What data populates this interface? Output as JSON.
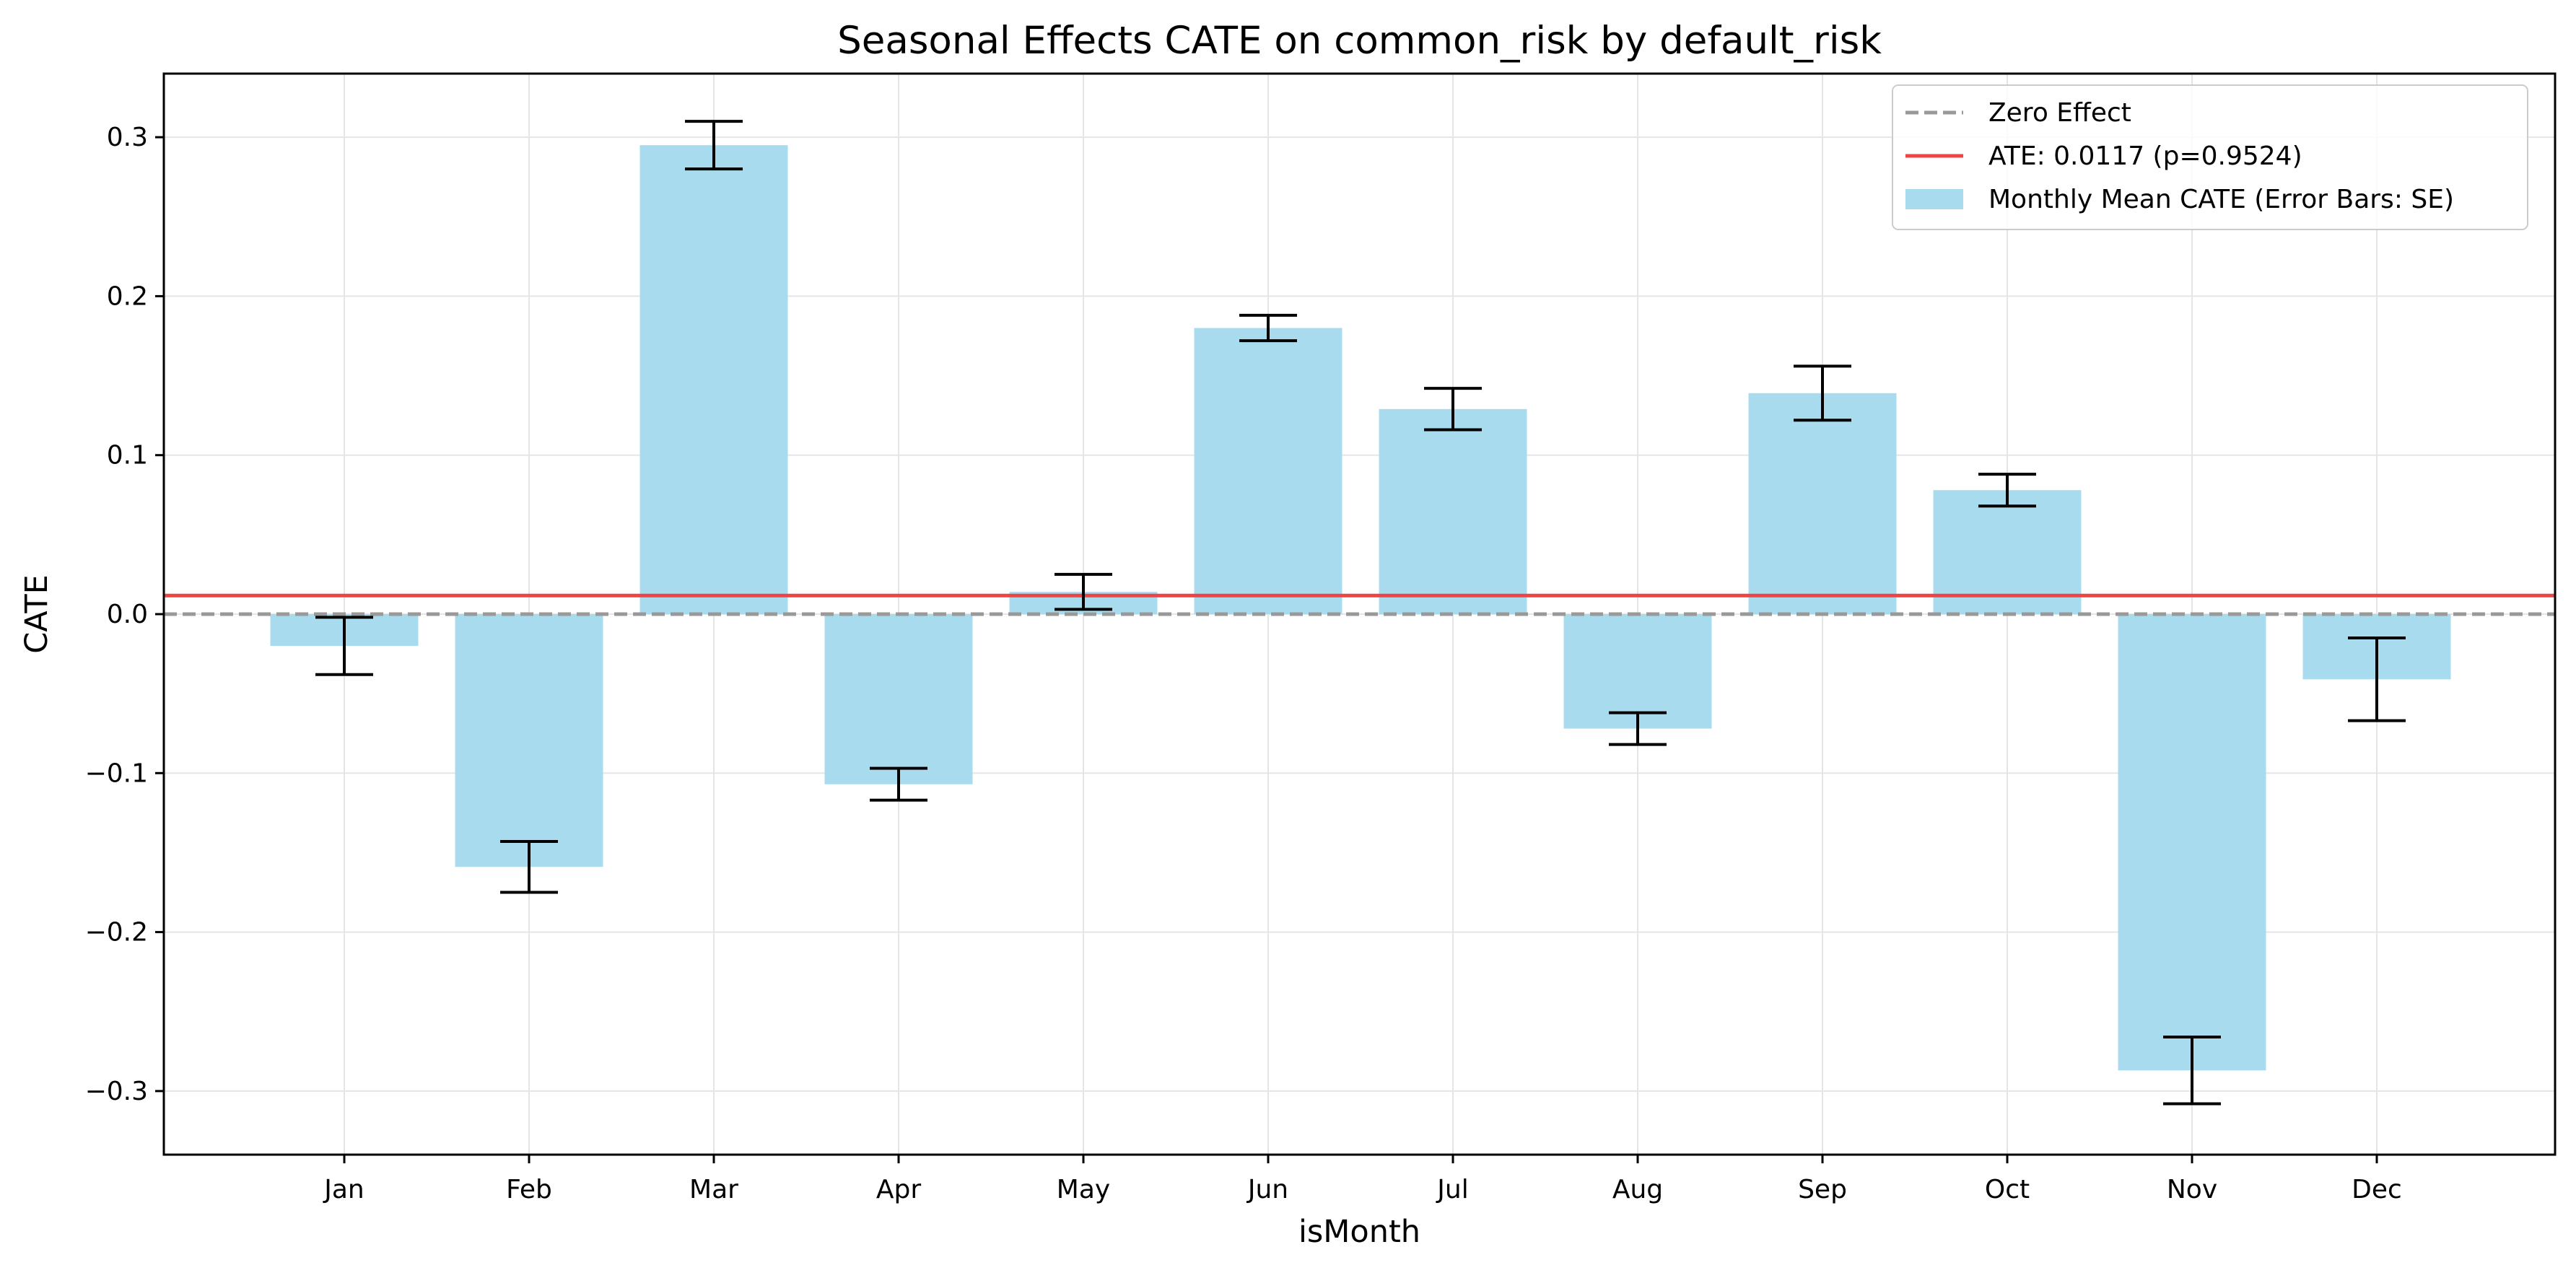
{
  "chart_data": {
    "type": "bar",
    "title": "Seasonal Effects CATE  on common_risk by default_risk",
    "xlabel": "isMonth",
    "ylabel": "CATE",
    "categories": [
      "Jan",
      "Feb",
      "Mar",
      "Apr",
      "May",
      "Jun",
      "Jul",
      "Aug",
      "Sep",
      "Oct",
      "Nov",
      "Dec"
    ],
    "values": [
      -0.02,
      -0.159,
      0.295,
      -0.107,
      0.014,
      0.18,
      0.129,
      -0.072,
      0.139,
      0.078,
      -0.287,
      -0.041
    ],
    "errors": [
      0.018,
      0.016,
      0.015,
      0.01,
      0.011,
      0.008,
      0.013,
      0.01,
      0.017,
      0.01,
      0.021,
      0.026
    ],
    "ylim": [
      -0.34,
      0.34
    ],
    "yticks": [
      -0.3,
      -0.2,
      -0.1,
      0.0,
      0.1,
      0.2,
      0.3
    ],
    "ytick_labels": [
      "−0.3",
      "−0.2",
      "−0.1",
      "0.0",
      "0.1",
      "0.2",
      "0.3"
    ],
    "grid": true,
    "bar_color": "#a9dbee",
    "reference_lines": [
      {
        "name": "Zero Effect",
        "y": 0.0,
        "style": "dashed",
        "color": "#999999"
      },
      {
        "name": "ATE: 0.0117 (p=0.9524)",
        "y": 0.0117,
        "style": "solid",
        "color": "#ee4444"
      }
    ],
    "legend": {
      "placement": "top-right",
      "entries": [
        {
          "label": "Zero Effect",
          "kind": "dashed-line",
          "color": "#999999"
        },
        {
          "label": "ATE: 0.0117 (p=0.9524)",
          "kind": "solid-line",
          "color": "#ee4444"
        },
        {
          "label": "Monthly Mean CATE (Error Bars: SE)",
          "kind": "patch",
          "color": "#a9dbee"
        }
      ]
    }
  }
}
